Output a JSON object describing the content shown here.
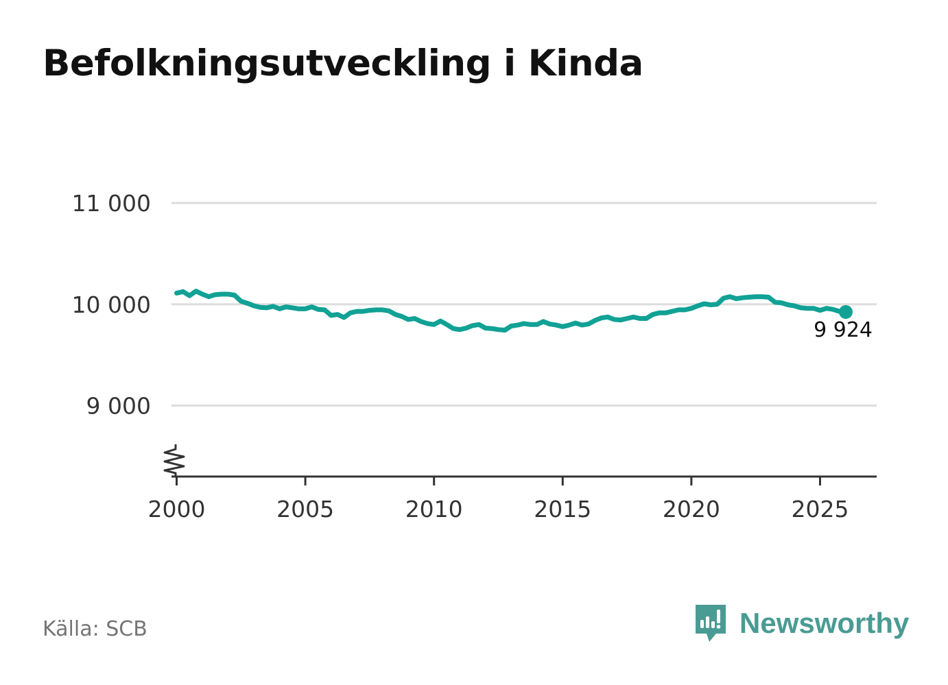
{
  "title": "Befolkningsutveckling i Kinda",
  "source": "Källa: SCB",
  "brand": {
    "name": "Newsworthy",
    "color": "#4a9b93"
  },
  "colors": {
    "line": "#11a195",
    "grid": "#dddddd",
    "axis": "#333333",
    "tick_text": "#333333"
  },
  "chart_data": {
    "type": "line",
    "title": "Befolkningsutveckling i Kinda",
    "xlabel": "",
    "ylabel": "",
    "xlim": [
      1999.8,
      2027.2
    ],
    "ylim": [
      8300,
      11000
    ],
    "y_axis_break": true,
    "grid": "horizontal",
    "x_ticks": [
      2000,
      2005,
      2010,
      2015,
      2020,
      2025
    ],
    "x_tick_labels": [
      "2000",
      "2005",
      "2010",
      "2015",
      "2020",
      "2025"
    ],
    "y_ticks": [
      9000,
      10000,
      11000
    ],
    "y_tick_labels": [
      "9 000",
      "10 000",
      "11 000"
    ],
    "last_value_label": "9 924",
    "series": [
      {
        "name": "Kinda",
        "x": [
          2000.0,
          2000.25,
          2000.5,
          2000.75,
          2001.0,
          2001.25,
          2001.5,
          2001.75,
          2002.0,
          2002.25,
          2002.5,
          2002.75,
          2003.0,
          2003.25,
          2003.5,
          2003.75,
          2004.0,
          2004.25,
          2004.5,
          2004.75,
          2005.0,
          2005.25,
          2005.5,
          2005.75,
          2006.0,
          2006.25,
          2006.5,
          2006.75,
          2007.0,
          2007.25,
          2007.5,
          2007.75,
          2008.0,
          2008.25,
          2008.5,
          2008.75,
          2009.0,
          2009.25,
          2009.5,
          2009.75,
          2010.0,
          2010.25,
          2010.5,
          2010.75,
          2011.0,
          2011.25,
          2011.5,
          2011.75,
          2012.0,
          2012.25,
          2012.5,
          2012.75,
          2013.0,
          2013.25,
          2013.5,
          2013.75,
          2014.0,
          2014.25,
          2014.5,
          2014.75,
          2015.0,
          2015.25,
          2015.5,
          2015.75,
          2016.0,
          2016.25,
          2016.5,
          2016.75,
          2017.0,
          2017.25,
          2017.5,
          2017.75,
          2018.0,
          2018.25,
          2018.5,
          2018.75,
          2019.0,
          2019.25,
          2019.5,
          2019.75,
          2020.0,
          2020.25,
          2020.5,
          2020.75,
          2021.0,
          2021.25,
          2021.5,
          2021.75,
          2022.0,
          2022.25,
          2022.5,
          2022.75,
          2023.0,
          2023.25,
          2023.5,
          2023.75,
          2024.0,
          2024.25,
          2024.5,
          2024.75,
          2025.0,
          2025.25,
          2025.5,
          2025.75,
          2026.0
        ],
        "values": [
          10110,
          10125,
          10085,
          10130,
          10100,
          10075,
          10095,
          10100,
          10100,
          10090,
          10030,
          10010,
          9985,
          9970,
          9965,
          9980,
          9955,
          9975,
          9965,
          9955,
          9955,
          9975,
          9950,
          9945,
          9890,
          9900,
          9870,
          9915,
          9930,
          9930,
          9940,
          9945,
          9945,
          9935,
          9900,
          9880,
          9850,
          9860,
          9830,
          9810,
          9800,
          9835,
          9800,
          9760,
          9750,
          9765,
          9790,
          9800,
          9765,
          9760,
          9750,
          9745,
          9785,
          9795,
          9810,
          9800,
          9800,
          9830,
          9805,
          9795,
          9780,
          9795,
          9815,
          9795,
          9805,
          9840,
          9865,
          9875,
          9850,
          9845,
          9860,
          9875,
          9860,
          9860,
          9900,
          9915,
          9915,
          9930,
          9945,
          9945,
          9960,
          9985,
          10005,
          9995,
          10000,
          10060,
          10075,
          10055,
          10065,
          10070,
          10075,
          10075,
          10070,
          10020,
          10015,
          9995,
          9985,
          9965,
          9960,
          9960,
          9940,
          9960,
          9950,
          9930,
          9924
        ]
      }
    ]
  }
}
